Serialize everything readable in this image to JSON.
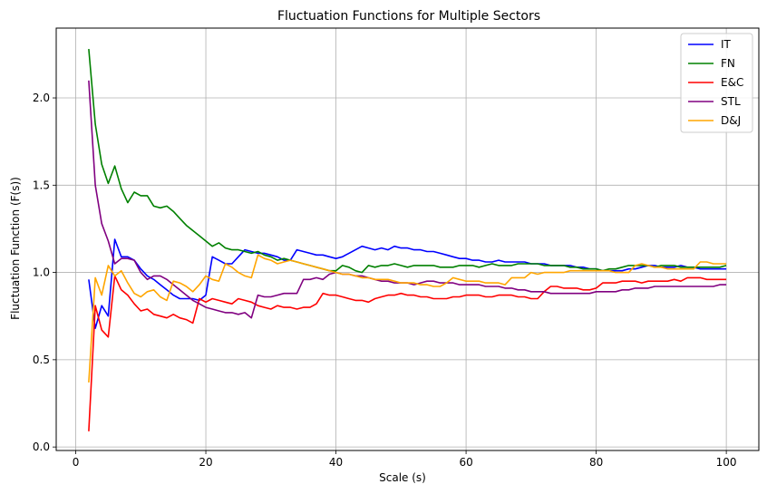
{
  "chart_data": {
    "type": "line",
    "title": "Fluctuation Functions for Multiple Sectors",
    "xlabel": "Scale (s)",
    "ylabel": "Fluctuation Function (F(s))",
    "xlim": [
      -3,
      105
    ],
    "ylim": [
      -0.02,
      2.4
    ],
    "xticks": [
      0,
      20,
      40,
      60,
      80,
      100
    ],
    "yticks": [
      0.0,
      0.5,
      1.0,
      1.5,
      2.0
    ],
    "grid": true,
    "legend": "top-right",
    "x": [
      2,
      3,
      4,
      5,
      6,
      7,
      8,
      9,
      10,
      11,
      12,
      13,
      14,
      15,
      16,
      17,
      18,
      19,
      20,
      21,
      22,
      23,
      24,
      25,
      26,
      27,
      28,
      29,
      30,
      31,
      32,
      33,
      34,
      35,
      36,
      37,
      38,
      39,
      40,
      41,
      42,
      43,
      44,
      45,
      46,
      47,
      48,
      49,
      50,
      51,
      52,
      53,
      54,
      55,
      56,
      57,
      58,
      59,
      60,
      61,
      62,
      63,
      64,
      65,
      66,
      67,
      68,
      69,
      70,
      71,
      72,
      73,
      74,
      75,
      76,
      77,
      78,
      79,
      80,
      81,
      82,
      83,
      84,
      85,
      86,
      87,
      88,
      89,
      90,
      91,
      92,
      93,
      94,
      95,
      96,
      97,
      98,
      99,
      100
    ],
    "series": [
      {
        "name": "IT",
        "color": "#0000ff",
        "values": [
          0.96,
          0.68,
          0.81,
          0.75,
          1.19,
          1.09,
          1.09,
          1.07,
          1.02,
          0.98,
          0.96,
          0.93,
          0.9,
          0.87,
          0.85,
          0.85,
          0.85,
          0.84,
          0.87,
          1.09,
          1.07,
          1.05,
          1.05,
          1.09,
          1.13,
          1.12,
          1.11,
          1.11,
          1.1,
          1.09,
          1.07,
          1.07,
          1.13,
          1.12,
          1.11,
          1.1,
          1.1,
          1.09,
          1.08,
          1.09,
          1.11,
          1.13,
          1.15,
          1.14,
          1.13,
          1.14,
          1.13,
          1.15,
          1.14,
          1.14,
          1.13,
          1.13,
          1.12,
          1.12,
          1.11,
          1.1,
          1.09,
          1.08,
          1.08,
          1.07,
          1.07,
          1.06,
          1.06,
          1.07,
          1.06,
          1.06,
          1.06,
          1.06,
          1.05,
          1.05,
          1.05,
          1.04,
          1.04,
          1.04,
          1.04,
          1.03,
          1.03,
          1.02,
          1.02,
          1.01,
          1.01,
          1.01,
          1.01,
          1.02,
          1.02,
          1.03,
          1.04,
          1.04,
          1.03,
          1.03,
          1.03,
          1.04,
          1.03,
          1.03,
          1.02,
          1.02,
          1.02,
          1.02,
          1.02
        ]
      },
      {
        "name": "FN",
        "color": "#008000",
        "values": [
          2.28,
          1.85,
          1.62,
          1.51,
          1.61,
          1.48,
          1.4,
          1.46,
          1.44,
          1.44,
          1.38,
          1.37,
          1.38,
          1.35,
          1.31,
          1.27,
          1.24,
          1.21,
          1.18,
          1.15,
          1.17,
          1.14,
          1.13,
          1.13,
          1.12,
          1.11,
          1.12,
          1.1,
          1.09,
          1.07,
          1.08,
          1.07,
          1.06,
          1.05,
          1.04,
          1.03,
          1.02,
          1.01,
          1.01,
          1.04,
          1.03,
          1.01,
          1.0,
          1.04,
          1.03,
          1.04,
          1.04,
          1.05,
          1.04,
          1.03,
          1.04,
          1.04,
          1.04,
          1.04,
          1.03,
          1.03,
          1.03,
          1.04,
          1.04,
          1.04,
          1.03,
          1.04,
          1.05,
          1.04,
          1.04,
          1.04,
          1.05,
          1.05,
          1.05,
          1.05,
          1.04,
          1.04,
          1.04,
          1.04,
          1.03,
          1.03,
          1.02,
          1.02,
          1.02,
          1.01,
          1.02,
          1.02,
          1.03,
          1.04,
          1.04,
          1.04,
          1.04,
          1.03,
          1.04,
          1.04,
          1.04,
          1.03,
          1.03,
          1.03,
          1.03,
          1.03,
          1.03,
          1.03,
          1.04
        ]
      },
      {
        "name": "E&C",
        "color": "#ff0000",
        "values": [
          0.09,
          0.81,
          0.67,
          0.63,
          0.98,
          0.9,
          0.87,
          0.82,
          0.78,
          0.79,
          0.76,
          0.75,
          0.74,
          0.76,
          0.74,
          0.73,
          0.71,
          0.85,
          0.83,
          0.85,
          0.84,
          0.83,
          0.82,
          0.85,
          0.84,
          0.83,
          0.81,
          0.8,
          0.79,
          0.81,
          0.8,
          0.8,
          0.79,
          0.8,
          0.8,
          0.82,
          0.88,
          0.87,
          0.87,
          0.86,
          0.85,
          0.84,
          0.84,
          0.83,
          0.85,
          0.86,
          0.87,
          0.87,
          0.88,
          0.87,
          0.87,
          0.86,
          0.86,
          0.85,
          0.85,
          0.85,
          0.86,
          0.86,
          0.87,
          0.87,
          0.87,
          0.86,
          0.86,
          0.87,
          0.87,
          0.87,
          0.86,
          0.86,
          0.85,
          0.85,
          0.89,
          0.92,
          0.92,
          0.91,
          0.91,
          0.91,
          0.9,
          0.9,
          0.91,
          0.94,
          0.94,
          0.94,
          0.95,
          0.95,
          0.95,
          0.94,
          0.95,
          0.95,
          0.95,
          0.95,
          0.96,
          0.95,
          0.97,
          0.97,
          0.97,
          0.96,
          0.96,
          0.96,
          0.96
        ]
      },
      {
        "name": "STL",
        "color": "#800080",
        "values": [
          2.1,
          1.5,
          1.28,
          1.18,
          1.05,
          1.08,
          1.08,
          1.07,
          1.0,
          0.96,
          0.98,
          0.98,
          0.96,
          0.93,
          0.9,
          0.87,
          0.84,
          0.82,
          0.8,
          0.79,
          0.78,
          0.77,
          0.77,
          0.76,
          0.77,
          0.74,
          0.87,
          0.86,
          0.86,
          0.87,
          0.88,
          0.88,
          0.88,
          0.96,
          0.96,
          0.97,
          0.96,
          0.99,
          1.0,
          0.99,
          0.99,
          0.98,
          0.98,
          0.97,
          0.96,
          0.95,
          0.95,
          0.94,
          0.94,
          0.94,
          0.93,
          0.94,
          0.95,
          0.95,
          0.94,
          0.94,
          0.94,
          0.93,
          0.93,
          0.93,
          0.93,
          0.92,
          0.92,
          0.92,
          0.91,
          0.91,
          0.9,
          0.9,
          0.89,
          0.89,
          0.89,
          0.88,
          0.88,
          0.88,
          0.88,
          0.88,
          0.88,
          0.88,
          0.89,
          0.89,
          0.89,
          0.89,
          0.9,
          0.9,
          0.91,
          0.91,
          0.91,
          0.92,
          0.92,
          0.92,
          0.92,
          0.92,
          0.92,
          0.92,
          0.92,
          0.92,
          0.92,
          0.93,
          0.93
        ]
      },
      {
        "name": "D&J",
        "color": "#ffa500",
        "values": [
          0.37,
          0.97,
          0.87,
          1.04,
          0.98,
          1.01,
          0.94,
          0.88,
          0.86,
          0.89,
          0.9,
          0.86,
          0.84,
          0.95,
          0.94,
          0.92,
          0.89,
          0.93,
          0.98,
          0.96,
          0.95,
          1.05,
          1.03,
          1.0,
          0.98,
          0.97,
          1.1,
          1.08,
          1.07,
          1.05,
          1.06,
          1.07,
          1.06,
          1.05,
          1.04,
          1.03,
          1.02,
          1.01,
          1.0,
          0.99,
          0.99,
          0.98,
          0.97,
          0.97,
          0.96,
          0.96,
          0.96,
          0.95,
          0.94,
          0.94,
          0.94,
          0.93,
          0.93,
          0.92,
          0.92,
          0.94,
          0.97,
          0.96,
          0.95,
          0.95,
          0.95,
          0.94,
          0.94,
          0.94,
          0.93,
          0.97,
          0.97,
          0.97,
          1.0,
          0.99,
          1.0,
          1.0,
          1.0,
          1.0,
          1.01,
          1.01,
          1.01,
          1.01,
          1.01,
          1.01,
          1.01,
          1.0,
          1.0,
          1.0,
          1.04,
          1.05,
          1.04,
          1.03,
          1.03,
          1.02,
          1.02,
          1.02,
          1.02,
          1.02,
          1.06,
          1.06,
          1.05,
          1.05,
          1.05
        ]
      }
    ]
  }
}
